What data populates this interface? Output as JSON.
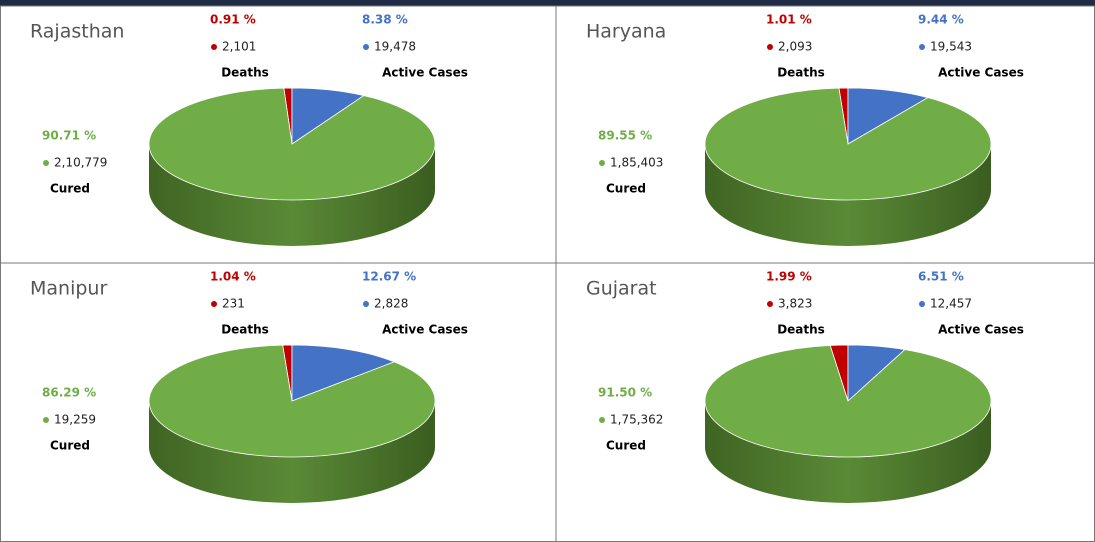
{
  "chart_data": [
    {
      "type": "pie",
      "title": "Rajasthan",
      "categories": [
        "Deaths",
        "Active Cases",
        "Cured"
      ],
      "values": [
        0.91,
        8.38,
        90.71
      ],
      "value_labels": [
        "0.91 %",
        "8.38 %",
        "90.71 %"
      ],
      "counts": [
        {
          "value": 2101,
          "label": "2,101"
        },
        {
          "value": 19478,
          "label": "19,478"
        },
        {
          "value": 210779,
          "label": "2,10,779"
        }
      ],
      "colors": [
        "#c00000",
        "#4472c4",
        "#70ad47"
      ]
    },
    {
      "type": "pie",
      "title": "Haryana",
      "categories": [
        "Deaths",
        "Active Cases",
        "Cured"
      ],
      "values": [
        1.01,
        9.44,
        89.55
      ],
      "value_labels": [
        "1.01 %",
        "9.44 %",
        "89.55 %"
      ],
      "counts": [
        {
          "value": 2093,
          "label": "2,093"
        },
        {
          "value": 19543,
          "label": "19,543"
        },
        {
          "value": 185403,
          "label": "1,85,403"
        }
      ],
      "colors": [
        "#c00000",
        "#4472c4",
        "#70ad47"
      ]
    },
    {
      "type": "pie",
      "title": "Manipur",
      "categories": [
        "Deaths",
        "Active Cases",
        "Cured"
      ],
      "values": [
        1.04,
        12.67,
        86.29
      ],
      "value_labels": [
        "1.04 %",
        "12.67 %",
        "86.29 %"
      ],
      "counts": [
        {
          "value": 231,
          "label": "231"
        },
        {
          "value": 2828,
          "label": "2,828"
        },
        {
          "value": 19259,
          "label": "19,259"
        }
      ],
      "colors": [
        "#c00000",
        "#4472c4",
        "#70ad47"
      ]
    },
    {
      "type": "pie",
      "title": "Gujarat",
      "categories": [
        "Deaths",
        "Active Cases",
        "Cured"
      ],
      "values": [
        1.99,
        6.51,
        91.5
      ],
      "value_labels": [
        "1.99 %",
        "6.51 %",
        "91.50 %"
      ],
      "counts": [
        {
          "value": 3823,
          "label": "3,823"
        },
        {
          "value": 12457,
          "label": "12,457"
        },
        {
          "value": 175362,
          "label": "1,75,362"
        }
      ],
      "colors": [
        "#c00000",
        "#4472c4",
        "#70ad47"
      ]
    }
  ]
}
